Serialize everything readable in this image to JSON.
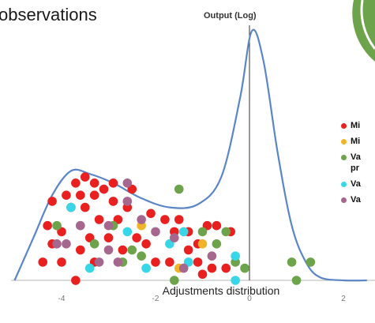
{
  "chart_data": {
    "type": "scatter",
    "title": "observations",
    "xlabel": "Adjustments distribution",
    "ylabel": "Output (Log)",
    "xlim": [
      -5,
      2.5
    ],
    "x_ticks": [
      "-4",
      "-2",
      "0",
      "2"
    ],
    "grid": false,
    "legend_position": "right",
    "legend": [
      {
        "label": "Mi",
        "color": "#e8201f"
      },
      {
        "label": "Mi",
        "color": "#f0b429"
      },
      {
        "label": "Va pr",
        "color": "#6da34a"
      },
      {
        "label": "Va",
        "color": "#39d6e8"
      },
      {
        "label": "Va",
        "color": "#a5678e"
      }
    ],
    "series": [
      {
        "color": "#e8201f",
        "points": [
          [
            -3.5,
            1.7
          ],
          [
            -3.3,
            1.6
          ],
          [
            -3.7,
            1.6
          ],
          [
            -3.1,
            1.5
          ],
          [
            -2.9,
            1.6
          ],
          [
            -3.9,
            1.4
          ],
          [
            -3.6,
            1.4
          ],
          [
            -3.3,
            1.4
          ],
          [
            -2.5,
            1.5
          ],
          [
            -3.8,
            1.2
          ],
          [
            -3.5,
            1.2
          ],
          [
            -2.9,
            1.3
          ],
          [
            -2.6,
            1.2
          ],
          [
            -4.2,
            1.3
          ],
          [
            -2.1,
            1.1
          ],
          [
            -1.5,
            1.0
          ],
          [
            -1.8,
            1.0
          ],
          [
            -3.2,
            1.0
          ],
          [
            -2.8,
            1.0
          ],
          [
            -4.3,
            0.9
          ],
          [
            -1.3,
            0.8
          ],
          [
            -1.6,
            0.8
          ],
          [
            -0.9,
            0.9
          ],
          [
            -0.7,
            0.9
          ],
          [
            -0.4,
            0.8
          ],
          [
            -4.0,
            0.8
          ],
          [
            -3.4,
            0.7
          ],
          [
            -3.0,
            0.7
          ],
          [
            -2.4,
            0.7
          ],
          [
            -1.1,
            0.6
          ],
          [
            -4.2,
            0.6
          ],
          [
            -3.6,
            0.5
          ],
          [
            -2.7,
            0.5
          ],
          [
            -2.2,
            0.6
          ],
          [
            -1.3,
            0.5
          ],
          [
            -4.0,
            0.3
          ],
          [
            -4.4,
            0.3
          ],
          [
            -3.3,
            0.3
          ],
          [
            -2.0,
            0.3
          ],
          [
            -1.7,
            0.3
          ],
          [
            -1.1,
            0.3
          ],
          [
            -0.8,
            0.2
          ],
          [
            -0.5,
            0.2
          ],
          [
            -1.0,
            0.1
          ],
          [
            -3.7,
            0.0
          ]
        ]
      },
      {
        "color": "#f0b429",
        "points": [
          [
            -2.3,
            0.9
          ],
          [
            -1.0,
            0.6
          ],
          [
            -1.5,
            0.2
          ]
        ]
      },
      {
        "color": "#6da34a",
        "points": [
          [
            -1.5,
            1.5
          ],
          [
            -4.1,
            0.9
          ],
          [
            -2.9,
            0.9
          ],
          [
            -3.3,
            0.6
          ],
          [
            -2.5,
            0.5
          ],
          [
            -2.7,
            0.3
          ],
          [
            -2.3,
            0.4
          ],
          [
            -1.0,
            0.8
          ],
          [
            -0.5,
            0.8
          ],
          [
            -0.3,
            0.3
          ],
          [
            -0.7,
            0.6
          ],
          [
            -0.1,
            0.2
          ],
          [
            -1.6,
            0.0
          ],
          [
            0.9,
            0.3
          ],
          [
            1.3,
            0.3
          ],
          [
            1.0,
            0.0
          ]
        ]
      },
      {
        "color": "#39d6e8",
        "points": [
          [
            -3.8,
            1.2
          ],
          [
            -3.6,
            0.9
          ],
          [
            -2.6,
            0.8
          ],
          [
            -1.7,
            0.6
          ],
          [
            -1.4,
            0.8
          ],
          [
            -0.3,
            0.4
          ],
          [
            -0.3,
            0.0
          ],
          [
            -3.4,
            0.2
          ],
          [
            -2.2,
            0.2
          ],
          [
            -1.3,
            0.3
          ]
        ]
      },
      {
        "color": "#a5678e",
        "points": [
          [
            -2.6,
            1.6
          ],
          [
            -2.6,
            1.3
          ],
          [
            -2.3,
            1.0
          ],
          [
            -3.6,
            0.9
          ],
          [
            -3.0,
            0.9
          ],
          [
            -2.0,
            0.8
          ],
          [
            -1.6,
            0.7
          ],
          [
            -4.1,
            0.6
          ],
          [
            -3.9,
            0.6
          ],
          [
            -3.2,
            0.3
          ],
          [
            -2.8,
            0.3
          ],
          [
            -0.8,
            0.4
          ],
          [
            -3.0,
            0.5
          ],
          [
            -1.4,
            0.2
          ]
        ]
      }
    ],
    "curve": {
      "color": "#5a86c8",
      "points": [
        [
          -5,
          0
        ],
        [
          -4.6,
          0.7
        ],
        [
          -4.2,
          1.4
        ],
        [
          -3.8,
          1.8
        ],
        [
          -3.4,
          1.75
        ],
        [
          -2.9,
          1.6
        ],
        [
          -2.3,
          1.35
        ],
        [
          -1.7,
          1.2
        ],
        [
          -1.1,
          1.25
        ],
        [
          -0.6,
          1.7
        ],
        [
          -0.2,
          3.0
        ],
        [
          0.05,
          4.1
        ],
        [
          0.3,
          3.6
        ],
        [
          0.6,
          2.1
        ],
        [
          0.9,
          0.9
        ],
        [
          1.2,
          0.3
        ],
        [
          1.5,
          0.05
        ],
        [
          2.0,
          0
        ],
        [
          2.5,
          0
        ]
      ]
    }
  },
  "legend_colors": {
    "pie_green": "#6da34a",
    "pie_accent": "#3cab56"
  }
}
